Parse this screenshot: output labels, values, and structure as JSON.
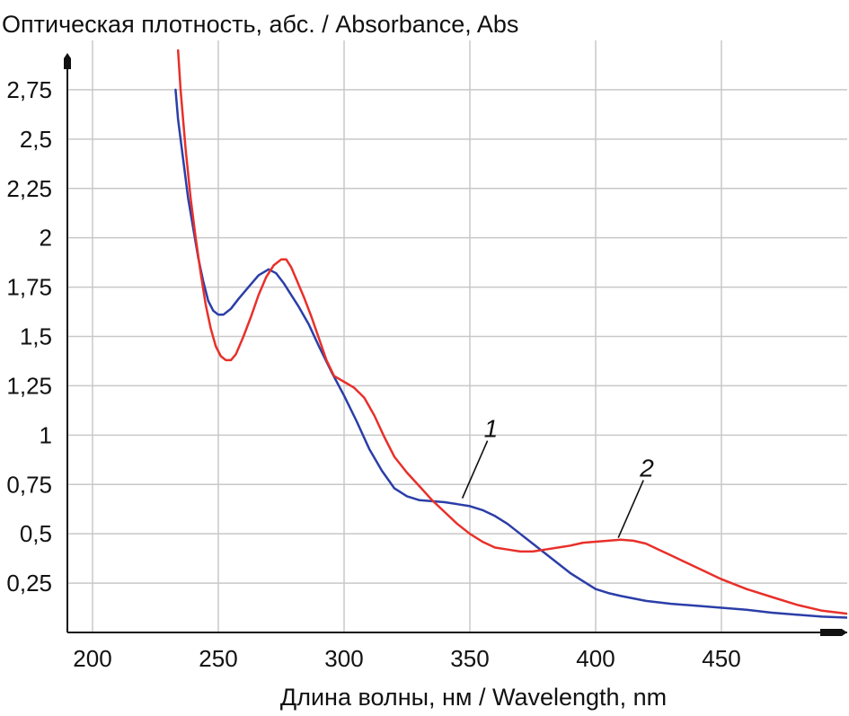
{
  "chart_data": {
    "type": "line",
    "ylabel": "Оптическая плотность, абс. / Absorbance, Abs",
    "xlabel": "Длина волны, нм / Wavelength, nm",
    "xlim": [
      190,
      500
    ],
    "ylim": [
      0,
      3.0
    ],
    "x_ticks": [
      200,
      250,
      300,
      350,
      400,
      450
    ],
    "x_tick_labels": [
      "200",
      "250",
      "300",
      "350",
      "400",
      "450"
    ],
    "y_ticks": [
      0.25,
      0.5,
      0.75,
      1,
      1.25,
      1.5,
      1.75,
      2,
      2.25,
      2.5,
      2.75
    ],
    "y_tick_labels": [
      "0,25",
      "0,5",
      "0,75",
      "1",
      "1,25",
      "1,5",
      "1,75",
      "2",
      "2,25",
      "2,5",
      "2,75"
    ],
    "grid": true,
    "series": [
      {
        "name": "1",
        "color": "#2b3ea8",
        "x": [
          233,
          234,
          236,
          238,
          240,
          242,
          244,
          246,
          248,
          250,
          252,
          255,
          258,
          262,
          266,
          270,
          273,
          276,
          279,
          282,
          286,
          290,
          295,
          300,
          305,
          310,
          315,
          320,
          325,
          330,
          335,
          340,
          345,
          350,
          355,
          360,
          365,
          370,
          375,
          380,
          385,
          390,
          395,
          400,
          405,
          410,
          420,
          430,
          440,
          450,
          460,
          470,
          480,
          490,
          500
        ],
        "y": [
          2.75,
          2.6,
          2.4,
          2.2,
          2.05,
          1.9,
          1.78,
          1.68,
          1.63,
          1.61,
          1.61,
          1.64,
          1.69,
          1.75,
          1.81,
          1.84,
          1.82,
          1.77,
          1.71,
          1.65,
          1.56,
          1.45,
          1.32,
          1.2,
          1.07,
          0.93,
          0.82,
          0.73,
          0.69,
          0.67,
          0.665,
          0.66,
          0.65,
          0.64,
          0.62,
          0.59,
          0.55,
          0.5,
          0.45,
          0.4,
          0.35,
          0.3,
          0.26,
          0.22,
          0.2,
          0.185,
          0.16,
          0.145,
          0.135,
          0.125,
          0.115,
          0.1,
          0.09,
          0.08,
          0.075
        ]
      },
      {
        "name": "2",
        "color": "#e8302a",
        "x": [
          234,
          235,
          237,
          239,
          241,
          243,
          245,
          247,
          249,
          251,
          253,
          255,
          257,
          260,
          263,
          266,
          269,
          272,
          275,
          277,
          279,
          281,
          284,
          287,
          290,
          293,
          296,
          300,
          304,
          308,
          312,
          316,
          320,
          325,
          330,
          335,
          340,
          345,
          350,
          355,
          360,
          365,
          370,
          375,
          380,
          385,
          390,
          395,
          400,
          405,
          410,
          415,
          420,
          425,
          430,
          440,
          450,
          460,
          470,
          480,
          490,
          500
        ],
        "y": [
          2.95,
          2.75,
          2.45,
          2.2,
          2.0,
          1.82,
          1.66,
          1.54,
          1.45,
          1.4,
          1.38,
          1.38,
          1.41,
          1.5,
          1.6,
          1.71,
          1.8,
          1.86,
          1.89,
          1.89,
          1.85,
          1.79,
          1.7,
          1.6,
          1.49,
          1.38,
          1.3,
          1.27,
          1.24,
          1.19,
          1.1,
          0.99,
          0.89,
          0.81,
          0.74,
          0.67,
          0.61,
          0.55,
          0.5,
          0.46,
          0.43,
          0.42,
          0.41,
          0.41,
          0.42,
          0.43,
          0.44,
          0.455,
          0.46,
          0.465,
          0.47,
          0.465,
          0.45,
          0.42,
          0.39,
          0.33,
          0.27,
          0.22,
          0.18,
          0.14,
          0.11,
          0.095
        ]
      }
    ],
    "annotations": [
      {
        "text": "1",
        "series": 0,
        "x": 347,
        "y": 0.68
      },
      {
        "text": "2",
        "series": 1,
        "x": 409,
        "y": 0.48
      }
    ]
  }
}
